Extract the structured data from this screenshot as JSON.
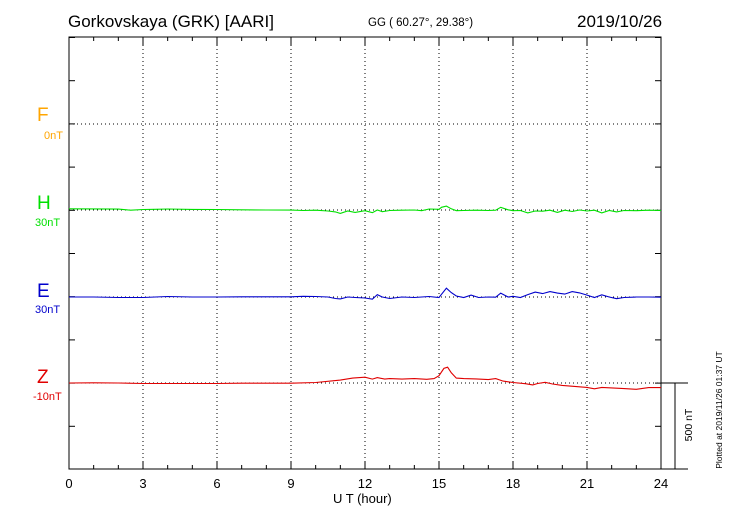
{
  "header": {
    "station": "Gorkovskaya (GRK)  [AARI]",
    "coords": "GG ( 60.27°,  29.38°)",
    "date": "2019/10/26"
  },
  "footer": {
    "plotted": "Plotted at 2019/11/26 01:37 UT",
    "scale": "500 nT"
  },
  "colors": {
    "F": "#ffa500",
    "H": "#00e000",
    "E": "#0000cc",
    "Z": "#e00000"
  },
  "chart_data": {
    "type": "line",
    "xlabel": "U T (hour)",
    "xlim": [
      0,
      24
    ],
    "xticks": [
      "0",
      "3",
      "6",
      "9",
      "12",
      "15",
      "18",
      "21",
      "24"
    ],
    "scale_nT": 500,
    "series": [
      {
        "name": "F",
        "baseline": "0nT",
        "color": "#ffa500",
        "x": [],
        "y": []
      },
      {
        "name": "H",
        "baseline": "30nT",
        "color": "#00e000",
        "x": [
          0,
          1,
          2,
          2.5,
          3,
          3.5,
          4,
          5,
          6,
          7,
          8,
          9,
          9.5,
          10,
          10.5,
          10.8,
          11,
          11.3,
          11.6,
          12,
          12.3,
          12.5,
          12.7,
          13,
          13.5,
          14,
          14.3,
          14.6,
          15,
          15.1,
          15.3,
          15.5,
          15.7,
          16,
          16.5,
          17,
          17.3,
          17.5,
          17.8,
          18,
          18.3,
          18.6,
          18.9,
          19.2,
          19.5,
          19.8,
          20.1,
          20.4,
          20.7,
          21,
          21.3,
          21.6,
          21.9,
          22.2,
          22.5,
          23,
          23.5,
          24
        ],
        "y": [
          10,
          9,
          7,
          -2,
          4,
          6,
          8,
          5,
          4,
          2,
          0,
          -1,
          -4,
          -2,
          -8,
          -16,
          -28,
          -8,
          -20,
          -6,
          -22,
          0,
          -14,
          -4,
          -2,
          0,
          -6,
          8,
          6,
          22,
          32,
          10,
          -6,
          -4,
          -2,
          -4,
          -2,
          22,
          2,
          -6,
          -4,
          -24,
          -8,
          -10,
          -2,
          -20,
          -2,
          -12,
          0,
          -8,
          -2,
          -24,
          -4,
          -16,
          -4,
          -6,
          -2,
          -4
        ]
      },
      {
        "name": "E",
        "baseline": "30nT",
        "color": "#0000cc",
        "x": [
          0,
          1,
          2,
          3,
          4,
          5,
          6,
          7,
          8,
          9,
          9.5,
          10,
          10.5,
          10.8,
          11,
          11.3,
          11.6,
          12,
          12.3,
          12.5,
          12.7,
          13,
          13.5,
          14,
          14.3,
          14.6,
          15,
          15.1,
          15.3,
          15.5,
          15.7,
          16,
          16.3,
          16.6,
          17,
          17.3,
          17.5,
          17.8,
          18,
          18.3,
          18.6,
          18.9,
          19.2,
          19.5,
          19.8,
          20.1,
          20.4,
          20.7,
          21,
          21.3,
          21.6,
          21.9,
          22.2,
          22.5,
          23,
          23.5,
          24
        ],
        "y": [
          0,
          0,
          -4,
          -4,
          4,
          0,
          0,
          2,
          2,
          2,
          6,
          4,
          0,
          -12,
          -16,
          0,
          -4,
          -8,
          -18,
          20,
          0,
          -12,
          0,
          -4,
          0,
          4,
          -4,
          22,
          72,
          36,
          8,
          -4,
          16,
          -4,
          0,
          -2,
          32,
          0,
          6,
          -4,
          20,
          40,
          28,
          44,
          32,
          24,
          44,
          34,
          16,
          -4,
          18,
          0,
          -14,
          -4,
          0,
          0,
          -2
        ]
      },
      {
        "name": "Z",
        "baseline": "-10nT",
        "color": "#e00000",
        "x": [
          0,
          1,
          2,
          3,
          4,
          5,
          6,
          7,
          8,
          9,
          10,
          11,
          11.5,
          12,
          12.3,
          12.5,
          12.8,
          13,
          13.5,
          14,
          14.5,
          14.8,
          15,
          15.2,
          15.35,
          15.5,
          15.7,
          16,
          16.5,
          17,
          17.3,
          17.6,
          18,
          18.5,
          18.8,
          19,
          19.3,
          19.6,
          20,
          20.5,
          21,
          21.3,
          21.6,
          22,
          22.5,
          23,
          23.5,
          24
        ],
        "y": [
          0,
          2,
          0,
          -4,
          -4,
          -4,
          -4,
          -2,
          -2,
          -2,
          4,
          24,
          40,
          48,
          32,
          44,
          32,
          36,
          32,
          36,
          30,
          36,
          60,
          120,
          130,
          84,
          40,
          36,
          34,
          28,
          36,
          16,
          4,
          -6,
          -16,
          -4,
          6,
          -8,
          -20,
          -28,
          -36,
          -48,
          -36,
          -40,
          -46,
          -52,
          -38,
          -38
        ]
      }
    ]
  }
}
